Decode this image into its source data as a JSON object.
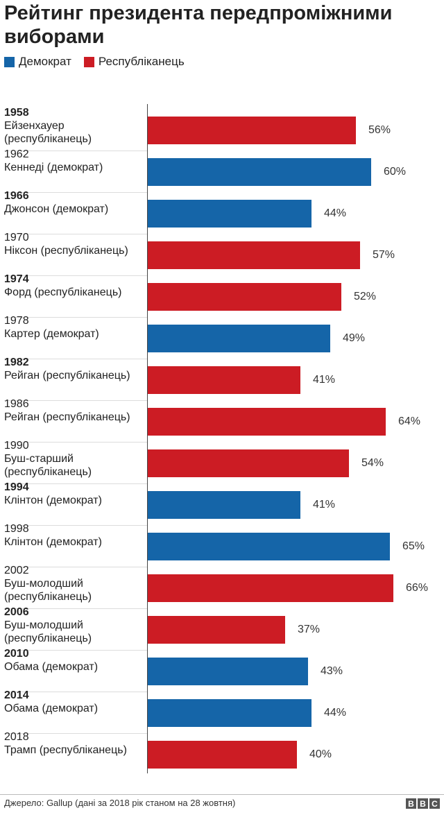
{
  "title": "Рейтинг президента передпроміжними виборами",
  "legend": [
    {
      "label": "Демократ",
      "color": "#1565a8"
    },
    {
      "label": "Республіканець",
      "color": "#cc1c24"
    }
  ],
  "colors": {
    "democrat": "#1565a8",
    "republican": "#cc1c24"
  },
  "chart_data": {
    "type": "bar",
    "orientation": "horizontal",
    "title": "Рейтинг президента передпроміжними виборами",
    "value_suffix": "%",
    "xlim": [
      0,
      70
    ],
    "rows": [
      {
        "year": "1958",
        "bold": true,
        "name": "Ейзенхауер",
        "party": "(республіканець)",
        "lines": [
          "Ейзенхауер",
          "(республіканець)"
        ],
        "value": 56,
        "group": "republican"
      },
      {
        "year": "1962",
        "bold": false,
        "name": "Кеннеді (демократ)",
        "lines": [
          "Кеннеді (демократ)"
        ],
        "value": 60,
        "group": "democrat"
      },
      {
        "year": "1966",
        "bold": true,
        "name": "Джонсон (демократ)",
        "lines": [
          "Джонсон (демократ)"
        ],
        "value": 44,
        "group": "democrat"
      },
      {
        "year": "1970",
        "bold": false,
        "name": "Ніксон (республіканець)",
        "lines": [
          "Ніксон (республіканець)"
        ],
        "value": 57,
        "group": "republican"
      },
      {
        "year": "1974",
        "bold": true,
        "name": "Форд (республіканець)",
        "lines": [
          "Форд (республіканець)"
        ],
        "value": 52,
        "group": "republican"
      },
      {
        "year": "1978",
        "bold": false,
        "name": "Картер (демократ)",
        "lines": [
          "Картер (демократ)"
        ],
        "value": 49,
        "group": "democrat"
      },
      {
        "year": "1982",
        "bold": true,
        "name": "Рейган (республіканець)",
        "lines": [
          "Рейган (республіканець)"
        ],
        "value": 41,
        "group": "republican"
      },
      {
        "year": "1986",
        "bold": false,
        "name": "Рейган (республіканець)",
        "lines": [
          "Рейган (республіканець)"
        ],
        "value": 64,
        "group": "republican"
      },
      {
        "year": "1990",
        "bold": false,
        "name": "Буш-старший (республіканець)",
        "lines": [
          "Буш-старший",
          "(республіканець)"
        ],
        "value": 54,
        "group": "republican"
      },
      {
        "year": "1994",
        "bold": true,
        "name": "Клінтон (демократ)",
        "lines": [
          "Клінтон (демократ)"
        ],
        "value": 41,
        "group": "democrat"
      },
      {
        "year": "1998",
        "bold": false,
        "name": "Клінтон (демократ)",
        "lines": [
          "Клінтон (демократ)"
        ],
        "value": 65,
        "group": "democrat"
      },
      {
        "year": "2002",
        "bold": false,
        "name": "Буш-молодший (республіканець)",
        "lines": [
          "Буш-молодший",
          "(республіканець)"
        ],
        "value": 66,
        "group": "republican"
      },
      {
        "year": "2006",
        "bold": true,
        "name": "Буш-молодший (республіканець)",
        "lines": [
          "Буш-молодший",
          "(республіканець)"
        ],
        "value": 37,
        "group": "republican"
      },
      {
        "year": "2010",
        "bold": true,
        "name": "Обама (демократ)",
        "lines": [
          "Обама (демократ)"
        ],
        "value": 43,
        "group": "democrat"
      },
      {
        "year": "2014",
        "bold": true,
        "name": "Обама (демократ)",
        "lines": [
          "Обама (демократ)"
        ],
        "value": 44,
        "group": "democrat"
      },
      {
        "year": "2018",
        "bold": false,
        "name": "Трамп (республіканець)",
        "lines": [
          "Трамп (республіканець)"
        ],
        "value": 40,
        "group": "republican"
      }
    ]
  },
  "footer": {
    "source": "Джерело:  Gallup (дані за 2018 рік станом на 28 жовтня)",
    "logo": [
      "B",
      "B",
      "C"
    ]
  }
}
